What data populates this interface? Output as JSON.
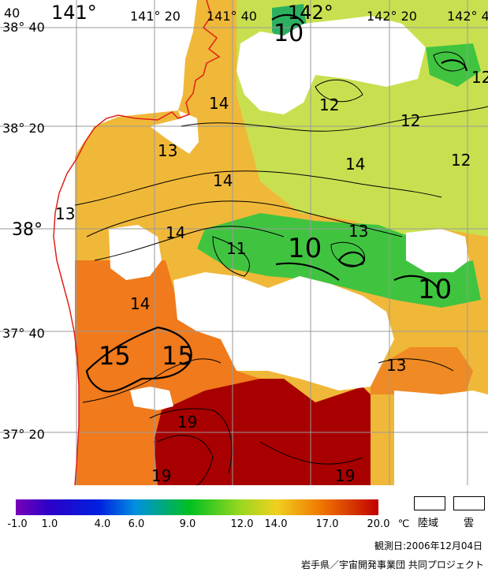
{
  "map": {
    "grid_lon_labels": [
      "40",
      "141°",
      "141° 20",
      "141° 40",
      "142°",
      "142° 20",
      "142° 4"
    ],
    "grid_lat_labels": [
      "38° 40",
      "38° 20",
      "38°",
      "37° 40",
      "37° 20"
    ],
    "contour_labels": [
      "10",
      "12",
      "12",
      "12",
      "12",
      "14",
      "13",
      "14",
      "14",
      "13",
      "14",
      "11",
      "10",
      "13",
      "10",
      "14",
      "15",
      "15",
      "13",
      "19",
      "19",
      "19"
    ]
  },
  "legend": {
    "ticks": [
      "-1.0",
      "1.0",
      "4.0",
      "6.0",
      "9.0",
      "12.0",
      "14.0",
      "17.0",
      "20.0"
    ],
    "unit": "℃",
    "land_label": "陸域",
    "cloud_label": "雲"
  },
  "footer": {
    "observation_date": "観測日:2006年12月04日",
    "credit": "岩手県／宇宙開発事業団 共同プロジェクト"
  },
  "colors": {
    "coastline": "#e0201a",
    "grid": "#9a9a9a",
    "sst_10": "#3cc83c",
    "sst_12": "#bfe04a",
    "sst_14": "#f0a830",
    "sst_17": "#f07020",
    "sst_20": "#a00000"
  }
}
